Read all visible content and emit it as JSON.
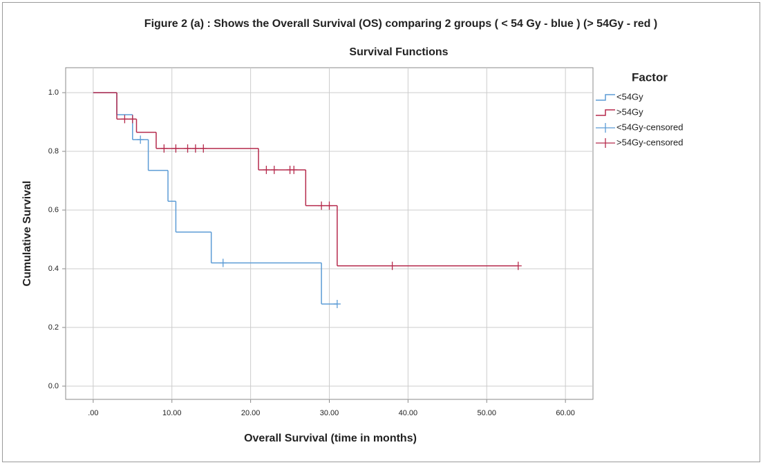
{
  "chart_data": {
    "type": "step",
    "title": "Figure 2 (a) : Shows the Overall Survival (OS) comparing 2 groups ( < 54 Gy - blue ) (> 54Gy - red )",
    "subtitle": "Survival Functions",
    "x_label": "Overall Survival (time in months)",
    "y_label": "Cumulative Survival",
    "legend_title": "Factor",
    "xlim": [
      -3.5,
      63.5
    ],
    "ylim": [
      -0.045,
      1.085
    ],
    "xticks": [
      {
        "value": 0,
        "label": ".00"
      },
      {
        "value": 10,
        "label": "10.00"
      },
      {
        "value": 20,
        "label": "20.00"
      },
      {
        "value": 30,
        "label": "30.00"
      },
      {
        "value": 40,
        "label": "40.00"
      },
      {
        "value": 50,
        "label": "50.00"
      },
      {
        "value": 60,
        "label": "60.00"
      }
    ],
    "yticks": [
      {
        "value": 0,
        "label": "0.0"
      },
      0.2,
      0.4,
      0.6,
      0.8,
      {
        "value": 1,
        "label": "1.0"
      }
    ],
    "grid": true,
    "series": [
      {
        "name": "<54Gy",
        "color": "#5b9bd5",
        "kind": "step",
        "x": [
          0,
          3,
          5,
          7,
          9.5,
          10.5,
          15,
          29,
          31
        ],
        "values": [
          1.0,
          0.925,
          0.84,
          0.735,
          0.63,
          0.525,
          0.42,
          0.28,
          0.28
        ]
      },
      {
        "name": ">54Gy",
        "color": "#b5294b",
        "kind": "step",
        "x": [
          0,
          3,
          5.5,
          8,
          21,
          27,
          31,
          54
        ],
        "values": [
          1.0,
          0.91,
          0.865,
          0.81,
          0.737,
          0.615,
          0.41,
          0.41
        ]
      },
      {
        "name": "<54Gy-censored",
        "color": "#5b9bd5",
        "kind": "censor",
        "x": [
          6,
          16.5,
          31
        ],
        "values": [
          0.84,
          0.42,
          0.28
        ]
      },
      {
        "name": ">54Gy-censored",
        "color": "#b5294b",
        "kind": "censor",
        "x": [
          4,
          5,
          9,
          10.5,
          12,
          13,
          14,
          22,
          23,
          25,
          25.5,
          29,
          30,
          38,
          54
        ],
        "values": [
          0.91,
          0.91,
          0.81,
          0.81,
          0.81,
          0.81,
          0.81,
          0.737,
          0.737,
          0.737,
          0.737,
          0.615,
          0.615,
          0.41,
          0.41
        ]
      }
    ]
  }
}
